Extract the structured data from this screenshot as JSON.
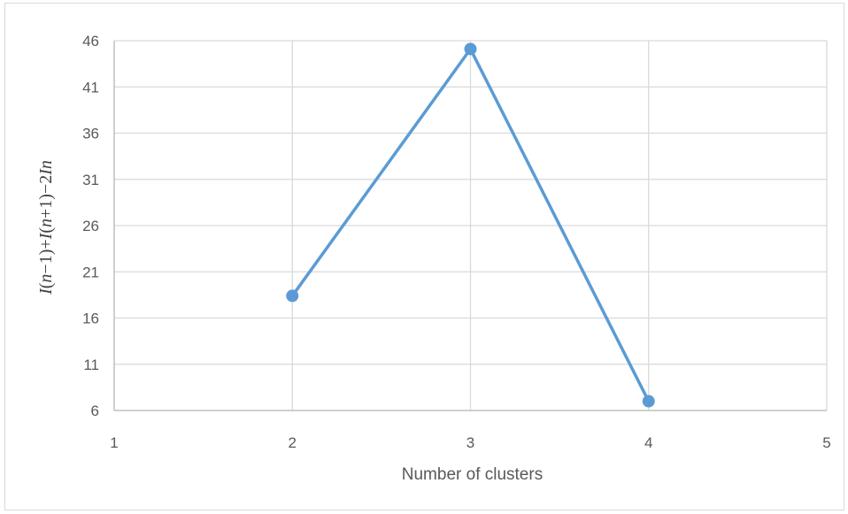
{
  "chart_data": {
    "type": "scatter",
    "title": "",
    "xlabel": "Number of clusters",
    "ylabel": "I(n−1)+I(n+1)−2In",
    "xlim": [
      1,
      5
    ],
    "ylim": [
      6,
      46
    ],
    "xticks": [
      "1",
      "2",
      "3",
      "4",
      "5"
    ],
    "yticks": [
      "6",
      "11",
      "16",
      "21",
      "26",
      "31",
      "36",
      "41",
      "46"
    ],
    "grid": true,
    "legend": "none",
    "series": [
      {
        "x": [
          2,
          3,
          4
        ],
        "y": [
          18.4,
          45.1,
          7.0
        ],
        "color": "#5b9bd5",
        "markers": true,
        "lines": true
      }
    ]
  }
}
